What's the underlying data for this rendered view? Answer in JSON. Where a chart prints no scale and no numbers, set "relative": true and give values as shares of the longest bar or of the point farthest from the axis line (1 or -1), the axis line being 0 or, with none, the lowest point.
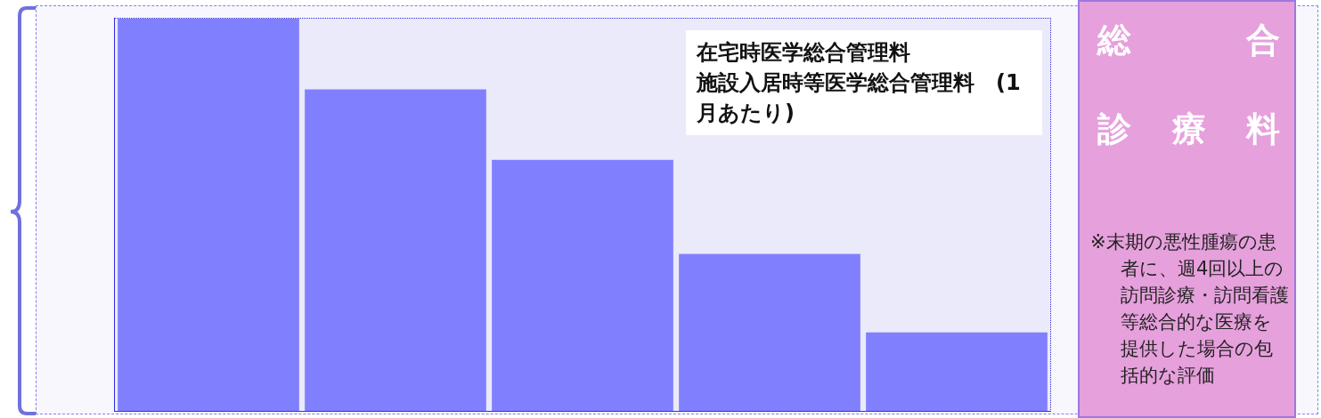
{
  "chart_data": {
    "type": "bar",
    "title": "在宅時医学総合管理料",
    "subtitle": "施設入居時等医学総合管理料　(1月あたり)",
    "categories": [
      null,
      null,
      null,
      null,
      null
    ],
    "relative": true,
    "color": "#8080ff",
    "values": [
      1,
      0.82,
      0.64,
      0.4,
      0.2
    ],
    "annotations": [
      "総合",
      "診療料",
      "※末期の悪性腫瘍の患者に、週4回以上の訪問診療・訪問看護等総合的な医療を提供した場合の包括的な評価"
    ]
  }
}
